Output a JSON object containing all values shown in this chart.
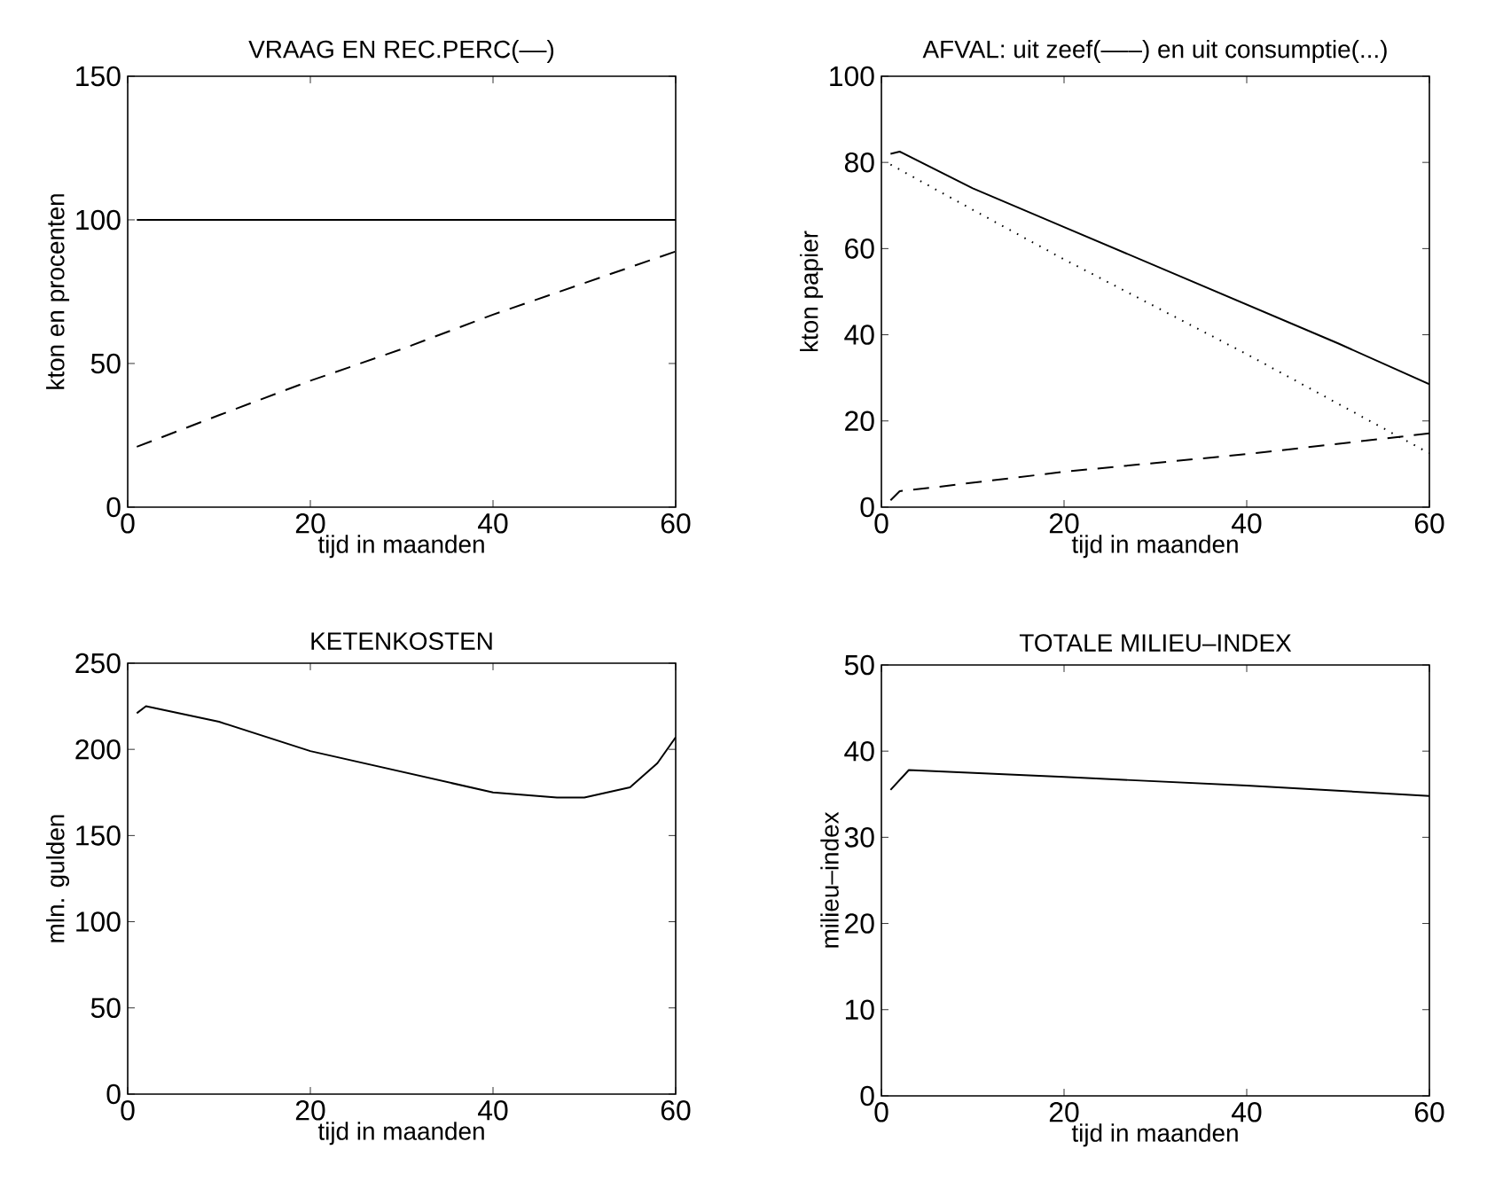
{
  "chart_data": [
    {
      "type": "line",
      "title": "VRAAG EN REC.PERC(––)",
      "xlabel": "tijd in maanden",
      "ylabel": "kton en procenten",
      "xlim": [
        0,
        60
      ],
      "ylim": [
        0,
        150
      ],
      "xticks": [
        0,
        20,
        40,
        60
      ],
      "yticks": [
        0,
        50,
        100,
        150
      ],
      "series": [
        {
          "color": "#000000",
          "line_style": "solid",
          "x": [
            1,
            10,
            20,
            30,
            40,
            50,
            60
          ],
          "values": [
            100,
            100,
            100,
            100,
            100,
            100,
            100
          ]
        },
        {
          "color": "#000000",
          "line_style": "dashed",
          "x": [
            1,
            10,
            20,
            30,
            40,
            50,
            60
          ],
          "values": [
            21,
            32,
            44,
            55,
            67,
            78,
            89
          ]
        }
      ]
    },
    {
      "type": "line",
      "title": "AFVAL: uit zeef(–––) en uit consumptie(...)",
      "xlabel": "tijd in maanden",
      "ylabel": "kton papier",
      "xlim": [
        0,
        60
      ],
      "ylim": [
        0,
        100
      ],
      "xticks": [
        0,
        20,
        40,
        60
      ],
      "yticks": [
        0,
        20,
        40,
        60,
        80,
        100
      ],
      "series": [
        {
          "color": "#000000",
          "line_style": "solid",
          "x": [
            1,
            2,
            10,
            20,
            30,
            40,
            50,
            60
          ],
          "values": [
            82,
            82.5,
            74,
            65,
            56,
            47,
            38,
            28.5
          ]
        },
        {
          "color": "#000000",
          "line_style": "dotted",
          "x": [
            1,
            10,
            20,
            30,
            40,
            50,
            60
          ],
          "values": [
            79.5,
            69,
            57.5,
            46.5,
            35.5,
            24,
            12.5
          ]
        },
        {
          "color": "#000000",
          "line_style": "dashed",
          "x": [
            1,
            2,
            5,
            20,
            40,
            60
          ],
          "values": [
            1.6,
            3.7,
            4.4,
            8.2,
            12.3,
            17.1
          ]
        }
      ]
    },
    {
      "type": "line",
      "title": "KETENKOSTEN",
      "xlabel": "tijd in maanden",
      "ylabel": "mln. gulden",
      "xlim": [
        0,
        60
      ],
      "ylim": [
        0,
        250
      ],
      "xticks": [
        0,
        20,
        40,
        60
      ],
      "yticks": [
        0,
        50,
        100,
        150,
        200,
        250
      ],
      "series": [
        {
          "color": "#000000",
          "line_style": "solid",
          "x": [
            1,
            2,
            10,
            20,
            30,
            40,
            47,
            50,
            55,
            58,
            60
          ],
          "values": [
            221,
            225,
            216,
            199,
            187,
            175,
            172,
            172,
            178,
            192,
            207
          ]
        }
      ]
    },
    {
      "type": "line",
      "title": "TOTALE MILIEU–INDEX",
      "xlabel": "tijd in maanden",
      "ylabel": "milieu–index",
      "xlim": [
        0,
        60
      ],
      "ylim": [
        0,
        50
      ],
      "xticks": [
        0,
        20,
        40,
        60
      ],
      "yticks": [
        0,
        10,
        20,
        30,
        40,
        50
      ],
      "series": [
        {
          "color": "#000000",
          "line_style": "solid",
          "x": [
            1,
            3,
            20,
            40,
            60
          ],
          "values": [
            35.5,
            37.8,
            37.0,
            36.0,
            34.8
          ]
        }
      ]
    }
  ]
}
